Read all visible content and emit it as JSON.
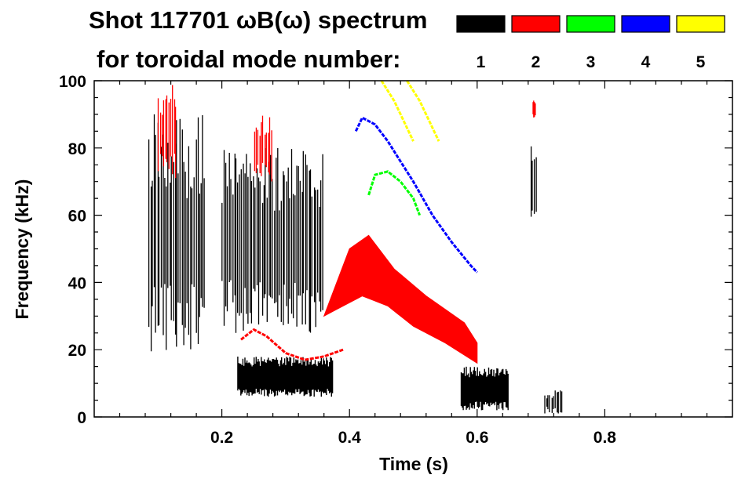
{
  "chart_data": {
    "type": "spectrogram",
    "title_line1": "Shot 117701 ωB(ω) spectrum",
    "title_line2": "for toroidal mode number:",
    "xlabel": "Time (s)",
    "ylabel": "Frequency (kHz)",
    "xlim": [
      0.0,
      1.0
    ],
    "ylim": [
      0,
      100
    ],
    "xticks": [
      0.2,
      0.4,
      0.6,
      0.8
    ],
    "xtick_labels": [
      "0.2",
      "0.4",
      "0.6",
      "0.8"
    ],
    "yticks": [
      0,
      20,
      40,
      60,
      80,
      100
    ],
    "ytick_labels": [
      "0",
      "20",
      "40",
      "60",
      "80",
      "100"
    ],
    "legend": [
      {
        "n": "1",
        "color": "#000000"
      },
      {
        "n": "2",
        "color": "#ff0000"
      },
      {
        "n": "3",
        "color": "#00ff00"
      },
      {
        "n": "4",
        "color": "#0000ff"
      },
      {
        "n": "5",
        "color": "#ffff00"
      }
    ],
    "series": [
      {
        "name": "1",
        "color": "#000000",
        "features": [
          {
            "kind": "vband",
            "t": [
              0.085,
              0.175
            ],
            "f": [
              18,
              90
            ]
          },
          {
            "kind": "vband",
            "t": [
              0.2,
              0.36
            ],
            "f": [
              25,
              80
            ]
          },
          {
            "kind": "band",
            "t": [
              0.225,
              0.375
            ],
            "f": [
              6,
              18
            ]
          },
          {
            "kind": "band",
            "t": [
              0.575,
              0.65
            ],
            "f": [
              2,
              15
            ]
          },
          {
            "kind": "vband",
            "t": [
              0.683,
              0.695
            ],
            "f": [
              55,
              82
            ]
          },
          {
            "kind": "vband",
            "t": [
              0.705,
              0.735
            ],
            "f": [
              1,
              8
            ]
          }
        ]
      },
      {
        "name": "2",
        "color": "#ff0000",
        "features": [
          {
            "kind": "line",
            "points": [
              [
                0.23,
                23
              ],
              [
                0.25,
                26
              ],
              [
                0.27,
                24
              ],
              [
                0.3,
                19
              ],
              [
                0.33,
                17
              ],
              [
                0.36,
                18
              ],
              [
                0.39,
                20
              ]
            ]
          },
          {
            "kind": "vband",
            "t": [
              0.1,
              0.13
            ],
            "f": [
              70,
              100
            ]
          },
          {
            "kind": "vband",
            "t": [
              0.25,
              0.28
            ],
            "f": [
              70,
              90
            ]
          },
          {
            "kind": "fill",
            "top": [
              [
                0.36,
                30
              ],
              [
                0.4,
                50
              ],
              [
                0.43,
                54
              ],
              [
                0.47,
                44
              ],
              [
                0.52,
                36
              ],
              [
                0.58,
                28
              ],
              [
                0.6,
                22
              ]
            ],
            "bottom": [
              [
                0.6,
                16
              ],
              [
                0.55,
                22
              ],
              [
                0.5,
                27
              ],
              [
                0.46,
                33
              ],
              [
                0.42,
                36
              ],
              [
                0.38,
                32
              ]
            ]
          },
          {
            "kind": "vband",
            "t": [
              0.687,
              0.692
            ],
            "f": [
              88,
              95
            ]
          }
        ]
      },
      {
        "name": "3",
        "color": "#00ff00",
        "features": [
          {
            "kind": "line",
            "points": [
              [
                0.43,
                66
              ],
              [
                0.44,
                72
              ],
              [
                0.46,
                73
              ],
              [
                0.48,
                70
              ],
              [
                0.5,
                65
              ],
              [
                0.51,
                60
              ]
            ]
          }
        ]
      },
      {
        "name": "4",
        "color": "#0000ff",
        "features": [
          {
            "kind": "line",
            "points": [
              [
                0.41,
                85
              ],
              [
                0.42,
                89
              ],
              [
                0.44,
                87
              ],
              [
                0.46,
                82
              ],
              [
                0.48,
                76
              ],
              [
                0.5,
                70
              ],
              [
                0.53,
                60
              ],
              [
                0.56,
                52
              ],
              [
                0.59,
                45
              ],
              [
                0.6,
                43
              ]
            ]
          }
        ]
      },
      {
        "name": "5",
        "color": "#ffff00",
        "features": [
          {
            "kind": "line",
            "points": [
              [
                0.45,
                100
              ],
              [
                0.47,
                94
              ],
              [
                0.49,
                86
              ],
              [
                0.5,
                82
              ]
            ]
          },
          {
            "kind": "line",
            "points": [
              [
                0.49,
                100
              ],
              [
                0.51,
                94
              ],
              [
                0.53,
                86
              ],
              [
                0.54,
                82
              ]
            ]
          }
        ]
      }
    ]
  }
}
